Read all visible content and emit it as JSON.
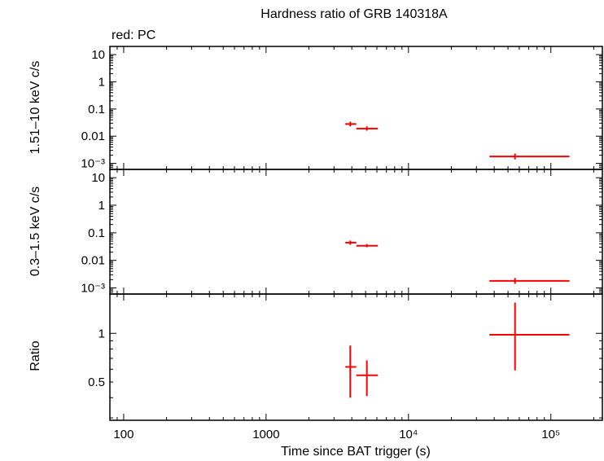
{
  "title": "Hardness ratio of GRB 140318A",
  "subtitle": "red: PC",
  "xlabel": "Time since BAT trigger (s)",
  "colors": {
    "series": "#ff0000",
    "axes": "#000000"
  },
  "chart_data": [
    {
      "type": "scatter",
      "panel": "hard",
      "ylabel": "1.51–10 keV c/s",
      "xscale": "log",
      "yscale": "log",
      "xlim": [
        80,
        230000
      ],
      "ylim": [
        0.0006,
        20
      ],
      "yticks": [
        {
          "value": 10,
          "label": "10"
        },
        {
          "value": 1,
          "label": "1"
        },
        {
          "value": 0.1,
          "label": "0.1"
        },
        {
          "value": 0.01,
          "label": "0.01"
        },
        {
          "value": 0.001,
          "label": "10⁻³"
        }
      ],
      "series": [
        {
          "points": [
            {
              "x": 3900,
              "xlo": 3600,
              "xhi": 4300,
              "y": 0.028,
              "ylo": 0.023,
              "yhi": 0.034
            },
            {
              "x": 5100,
              "xlo": 4300,
              "xhi": 6100,
              "y": 0.019,
              "ylo": 0.016,
              "yhi": 0.023
            },
            {
              "x": 56000,
              "xlo": 37000,
              "xhi": 135000,
              "y": 0.0018,
              "ylo": 0.0014,
              "yhi": 0.0023
            }
          ]
        }
      ]
    },
    {
      "type": "scatter",
      "panel": "soft",
      "ylabel": "0.3–1.5 keV c/s",
      "xscale": "log",
      "yscale": "log",
      "xlim": [
        80,
        230000
      ],
      "ylim": [
        0.0006,
        20
      ],
      "yticks": [
        {
          "value": 10,
          "label": "10"
        },
        {
          "value": 1,
          "label": "1"
        },
        {
          "value": 0.1,
          "label": "0.1"
        },
        {
          "value": 0.01,
          "label": "0.01"
        },
        {
          "value": 0.001,
          "label": "10⁻³"
        }
      ],
      "series": [
        {
          "points": [
            {
              "x": 3900,
              "xlo": 3600,
              "xhi": 4300,
              "y": 0.044,
              "ylo": 0.037,
              "yhi": 0.052
            },
            {
              "x": 5100,
              "xlo": 4300,
              "xhi": 6100,
              "y": 0.034,
              "ylo": 0.03,
              "yhi": 0.039
            },
            {
              "x": 56000,
              "xlo": 37000,
              "xhi": 135000,
              "y": 0.0018,
              "ylo": 0.0014,
              "yhi": 0.0023
            }
          ]
        }
      ]
    },
    {
      "type": "scatter",
      "panel": "ratio",
      "ylabel": "Ratio",
      "xscale": "log",
      "yscale": "log",
      "xlim": [
        80,
        230000
      ],
      "ylim": [
        0.29,
        1.75
      ],
      "yticks": [
        {
          "value": 1,
          "label": "1"
        },
        {
          "value": 0.5,
          "label": "0.5"
        }
      ],
      "xticks": [
        {
          "value": 100,
          "label": "100"
        },
        {
          "value": 1000,
          "label": "1000"
        },
        {
          "value": 10000,
          "label": "10⁴"
        },
        {
          "value": 100000,
          "label": "10⁵"
        }
      ],
      "series": [
        {
          "points": [
            {
              "x": 3900,
              "xlo": 3600,
              "xhi": 4300,
              "y": 0.62,
              "ylo": 0.4,
              "yhi": 0.84
            },
            {
              "x": 5100,
              "xlo": 4300,
              "xhi": 6100,
              "y": 0.55,
              "ylo": 0.41,
              "yhi": 0.68
            },
            {
              "x": 56000,
              "xlo": 37000,
              "xhi": 135000,
              "y": 0.98,
              "ylo": 0.59,
              "yhi": 1.55
            }
          ]
        }
      ]
    }
  ]
}
